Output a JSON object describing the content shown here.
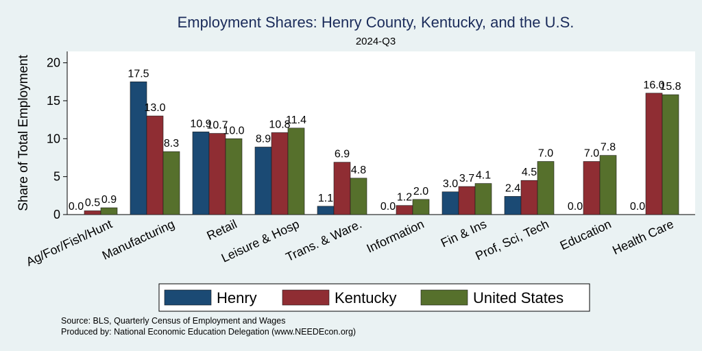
{
  "chart_data": {
    "type": "bar",
    "title": "Employment Shares: Henry County, Kentucky, and the U.S.",
    "subtitle": "2024-Q3",
    "xlabel": "",
    "ylabel": "Share of Total Employment",
    "ylim": [
      0,
      21.5
    ],
    "yticks": [
      0,
      5,
      10,
      15,
      20
    ],
    "grid": false,
    "legend_position": "bottom",
    "categories": [
      "Ag/For/Fish/Hunt",
      "Manufacturing",
      "Retail",
      "Leisure & Hosp",
      "Trans. & Ware.",
      "Information",
      "Fin & Ins",
      "Prof, Sci, Tech",
      "Education",
      "Health Care"
    ],
    "series": [
      {
        "name": "Henry",
        "color": "#1b4a74",
        "values": [
          0.0,
          17.5,
          10.9,
          8.9,
          1.1,
          0.0,
          3.0,
          2.4,
          0.0,
          0.0
        ]
      },
      {
        "name": "Kentucky",
        "color": "#8f2d33",
        "values": [
          0.5,
          13.0,
          10.7,
          10.8,
          6.9,
          1.2,
          3.7,
          4.5,
          7.0,
          16.0
        ]
      },
      {
        "name": "United States",
        "color": "#56702c",
        "values": [
          0.9,
          8.3,
          10.0,
          11.4,
          4.8,
          2.0,
          4.1,
          7.0,
          7.8,
          15.8
        ]
      }
    ],
    "notes": [
      "Source: BLS, Quarterly Census of Employment and Wages",
      "Produced by: National Economic Education Delegation (www.NEEDEcon.org)"
    ]
  }
}
